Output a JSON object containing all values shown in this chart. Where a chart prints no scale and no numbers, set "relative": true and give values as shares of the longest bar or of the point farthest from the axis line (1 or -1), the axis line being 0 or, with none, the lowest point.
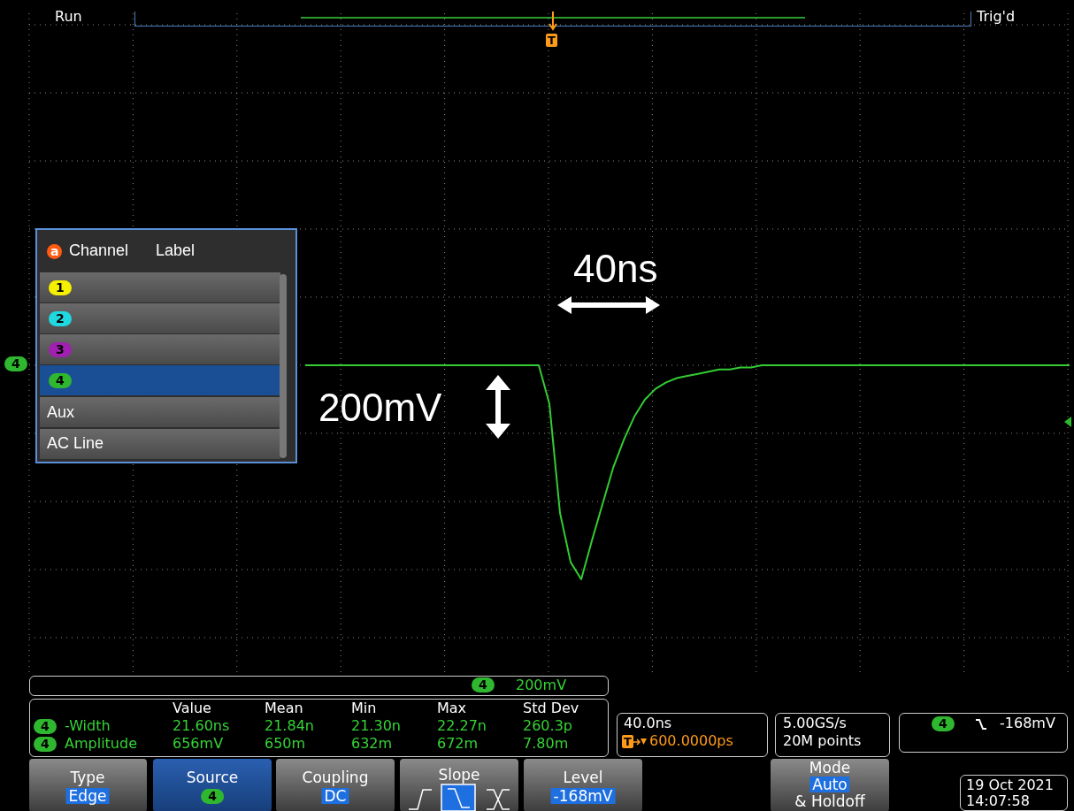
{
  "chart_data": {
    "type": "line",
    "relative": true,
    "grid": true,
    "legend": false,
    "marker": "none",
    "line_style": "solid",
    "categories": [
      null,
      null,
      null,
      null,
      null,
      null,
      null,
      null,
      null,
      null,
      null,
      null,
      null,
      null,
      null,
      null,
      null,
      null,
      null,
      null,
      null,
      null,
      null,
      null,
      null,
      null,
      null,
      null,
      null,
      null,
      null,
      null,
      null,
      null,
      null,
      null,
      null,
      null,
      null,
      null,
      null,
      null,
      null,
      null,
      null,
      null,
      null,
      null,
      null,
      null,
      null,
      null,
      null,
      null,
      null,
      null,
      null,
      null,
      null,
      null,
      null,
      null,
      null,
      null,
      null,
      null,
      null,
      null,
      null,
      null,
      null,
      null,
      null
    ],
    "series": [
      {
        "color": "#33cc33",
        "values": [
          0,
          0,
          0,
          0,
          0,
          0,
          0,
          0,
          0,
          0,
          0,
          0,
          0,
          0,
          0,
          0,
          0,
          0,
          0,
          0,
          0,
          0,
          0,
          -0.18,
          -0.69,
          -0.92,
          -1,
          -0.82,
          -0.65,
          -0.48,
          -0.35,
          -0.24,
          -0.16,
          -0.11,
          -0.08,
          -0.06,
          -0.05,
          -0.04,
          -0.03,
          -0.02,
          -0.02,
          -0.01,
          -0.01,
          0,
          0,
          0,
          0,
          0,
          0,
          0,
          0,
          0,
          0,
          0,
          0,
          0,
          0,
          0,
          0,
          0,
          0,
          0,
          0,
          0,
          0,
          0,
          0,
          0,
          0,
          0,
          0,
          0,
          0
        ]
      }
    ],
    "annotations": [
      "Run",
      "Trig'd",
      "40ns",
      "200mV",
      "Channel",
      "Label",
      "1",
      "2",
      "3",
      "4",
      "Aux",
      "AC Line",
      "4",
      "200mV",
      "Value",
      "Mean",
      "Min",
      "Max",
      "Std Dev",
      "4",
      "-Width",
      "21.60ns",
      "21.84n",
      "21.30n",
      "22.27n",
      "260.3p",
      "4",
      "Amplitude",
      "656mV",
      "650m",
      "632m",
      "672m",
      "7.80m",
      "40.0ns",
      "600.0000ps",
      "5.00GS/s",
      "20M points",
      "4",
      "-168mV",
      "Type",
      "Edge",
      "Source",
      "4",
      "Coupling",
      "DC",
      "Slope",
      "Level",
      "-168mV",
      "Mode",
      "Auto",
      "& Holdoff",
      "19 Oct  2021",
      "14:07:58",
      "a",
      "T",
      "4",
      "T"
    ]
  }
}
